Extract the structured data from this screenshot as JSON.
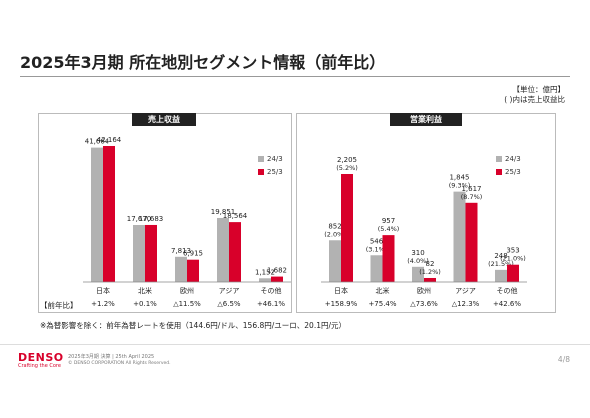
{
  "title": "2025年3月期 所在地別セグメント情報（前年比）",
  "unit_line1": "【単位：億円】",
  "unit_line2": "( )内は売上収益比",
  "yoy_row_label": "【前年比】",
  "note": "※為替影響を除く：前年為替レートを使用（144.6円/ドル、156.8円/ユーロ、20.1円/元）",
  "footer": {
    "logo": "DENSO",
    "tagline": "Crafting the Core",
    "line1": "2025年3月期 決算 | 25th April 2025",
    "line2": "© DENSO CORPORATION All Rights Reserved.",
    "page": "4/8"
  },
  "colors": {
    "prev": "#b2b2b2",
    "curr": "#d8002a"
  },
  "chart_data": [
    {
      "type": "bar",
      "title": "売上収益",
      "categories": [
        "日本",
        "北米",
        "欧州",
        "アジア",
        "その他"
      ],
      "series": [
        {
          "name": "24/3",
          "values": [
            41664,
            17670,
            7813,
            19851,
            1152
          ],
          "labels": [
            "41,664",
            "17,670",
            "7,813",
            "19,851",
            "1,152"
          ]
        },
        {
          "name": "25/3",
          "values": [
            42164,
            17683,
            6915,
            18564,
            1682
          ],
          "labels": [
            "42,164",
            "17,683",
            "6,915",
            "18,564",
            "1,682"
          ]
        }
      ],
      "yoy": [
        "+1.2%",
        "+0.1%",
        "△11.5%",
        "△6.5%",
        "+46.1%"
      ]
    },
    {
      "type": "bar",
      "title": "営業利益",
      "categories": [
        "日本",
        "北米",
        "欧州",
        "アジア",
        "その他"
      ],
      "series": [
        {
          "name": "24/3",
          "values": [
            852,
            546,
            310,
            1845,
            248
          ],
          "labels": [
            "852",
            "546",
            "310",
            "1,845",
            "248"
          ],
          "ratios": [
            "(2.0%)",
            "(3.1%)",
            "(4.0%)",
            "(9.3%)",
            "(21.5%)"
          ]
        },
        {
          "name": "25/3",
          "values": [
            2205,
            957,
            82,
            1617,
            353
          ],
          "labels": [
            "2,205",
            "957",
            "82",
            "1,617",
            "353"
          ],
          "ratios": [
            "(5.2%)",
            "(5.4%)",
            "(1.2%)",
            "(8.7%)",
            "(21.0%)"
          ]
        }
      ],
      "yoy": [
        "+158.9%",
        "+75.4%",
        "△73.6%",
        "△12.3%",
        "+42.6%"
      ]
    }
  ]
}
